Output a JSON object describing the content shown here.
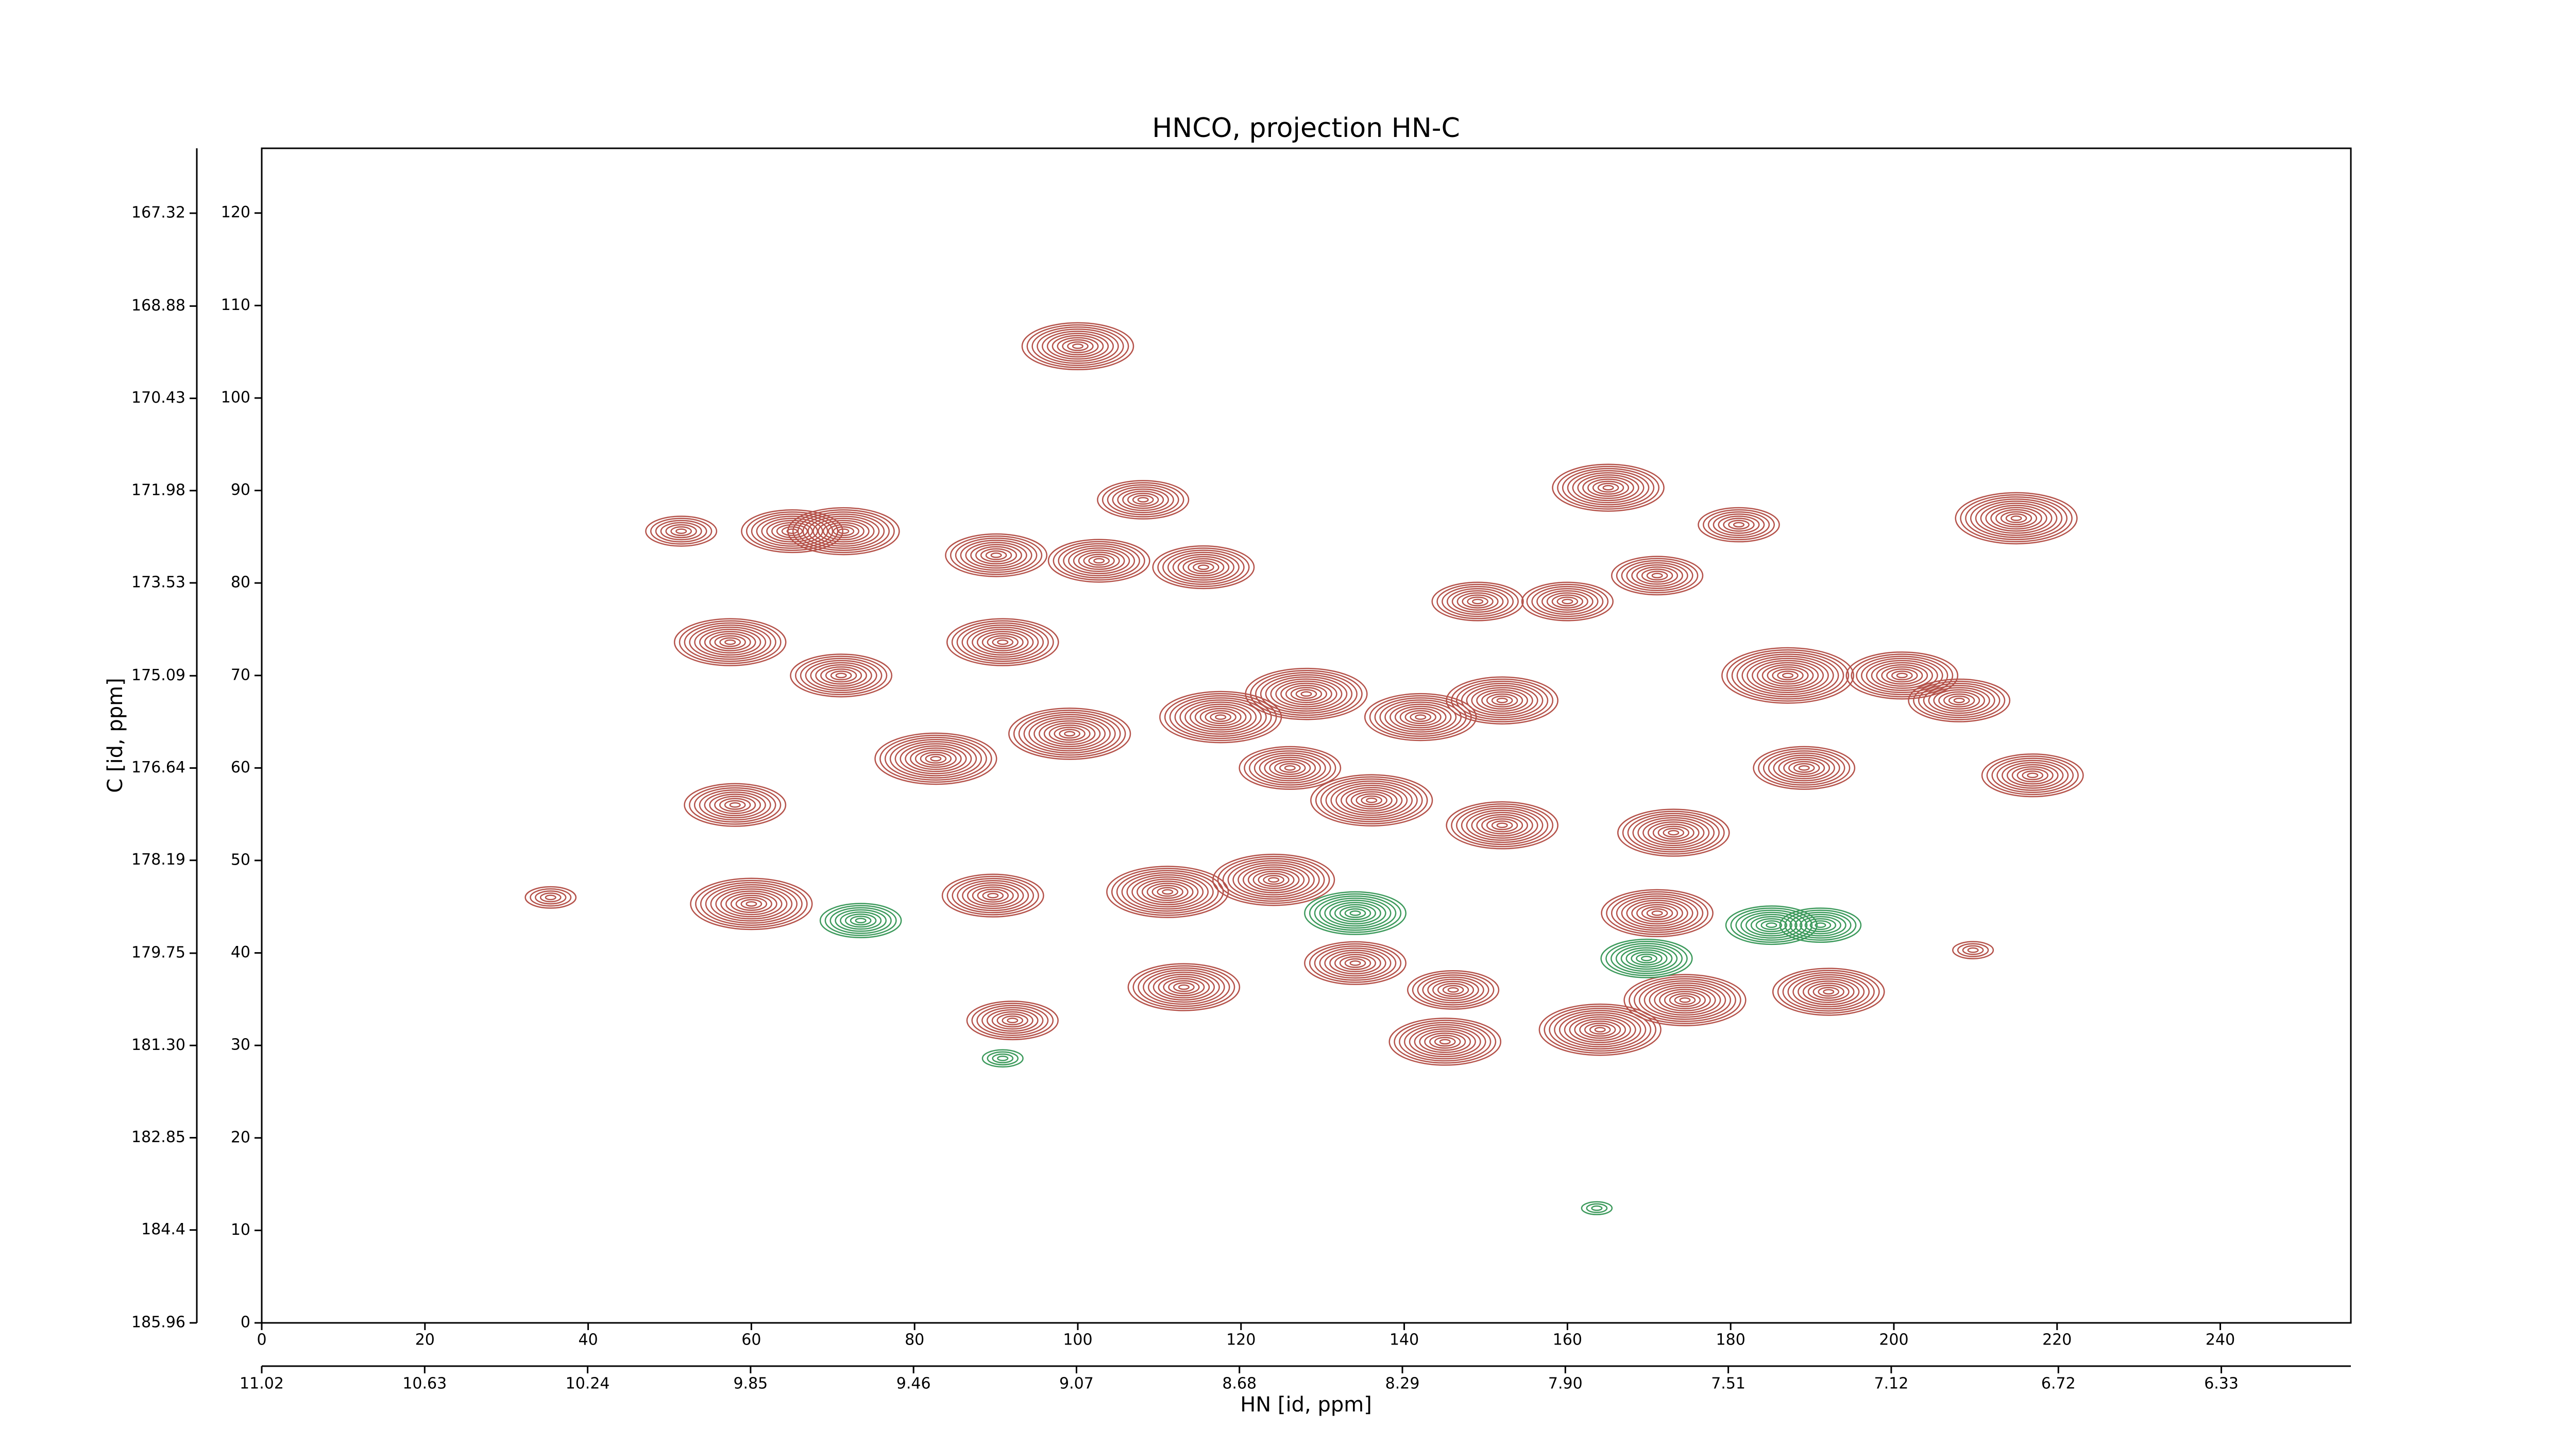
{
  "chart_data": {
    "type": "contour",
    "title": "HNCO, projection HN-C",
    "xlabel": "HN [id, ppm]",
    "ylabel": "C [id, ppm]",
    "xlim": [
      0,
      256
    ],
    "xticks": [
      0,
      20,
      40,
      60,
      80,
      100,
      120,
      140,
      160,
      180,
      200,
      220,
      240
    ],
    "ylim": [
      0,
      127
    ],
    "yticks": [
      0,
      10,
      20,
      30,
      40,
      50,
      60,
      70,
      80,
      90,
      100,
      110,
      120
    ],
    "x2lim": [
      11.02,
      6.02
    ],
    "x2ticks": [
      11.02,
      10.63,
      10.24,
      9.85,
      9.46,
      9.07,
      8.68,
      8.29,
      {
        "value": 7.9,
        "label": "7.90"
      },
      7.51,
      7.12,
      6.72,
      6.33
    ],
    "y2lim": [
      185.96,
      166.23
    ],
    "y2ticks": [
      185.96,
      184.4,
      182.85,
      {
        "value": 181.3,
        "label": "181.30"
      },
      179.75,
      178.19,
      176.64,
      175.09,
      173.53,
      171.98,
      170.43,
      168.88,
      167.32
    ],
    "positive": {
      "color": "#b5534b",
      "x": [
        100,
        90,
        102.6,
        65,
        71.3,
        51.4,
        57.4,
        71,
        58,
        60,
        35.4,
        89.6,
        92,
        111,
        124,
        113,
        134,
        146,
        145,
        164,
        171,
        173,
        174.4,
        192,
        187,
        201,
        208,
        217,
        215,
        181,
        165,
        189,
        152,
        149,
        160,
        171,
        128,
        117.5,
        136,
        99,
        82.6,
        126,
        142,
        152,
        108,
        115.4,
        90.8,
        209.7
      ],
      "y": [
        105.6,
        83,
        82.4,
        85.6,
        85.6,
        85.6,
        73.6,
        70,
        56,
        45.3,
        46,
        46.2,
        32.7,
        46.6,
        47.9,
        36.3,
        38.9,
        36,
        30.4,
        31.7,
        44.3,
        53,
        34.9,
        35.8,
        70,
        70,
        67.3,
        59.2,
        87,
        86.3,
        90.3,
        60,
        53.8,
        78,
        78,
        80.8,
        68,
        65.5,
        56.5,
        63.7,
        61,
        60,
        65.5,
        67.3,
        89,
        81.7,
        73.6,
        40.3
      ],
      "levels": [
        11,
        10,
        10,
        10,
        11,
        7,
        11,
        10,
        10,
        12,
        5,
        10,
        9,
        12,
        12,
        11,
        10,
        9,
        11,
        12,
        11,
        11,
        12,
        11,
        13,
        11,
        10,
        10,
        12,
        8,
        11,
        10,
        11,
        9,
        9,
        9,
        12,
        12,
        12,
        12,
        12,
        10,
        11,
        11,
        9,
        10,
        11,
        4
      ]
    },
    "negative": {
      "color": "#3d9a5c",
      "x": [
        73.4,
        134,
        169.7,
        185,
        191,
        90.8,
        163.6
      ],
      "y": [
        43.5,
        44.3,
        39.4,
        43,
        43,
        28.6,
        12.4
      ],
      "levels": [
        8,
        10,
        9,
        9,
        8,
        4,
        3
      ]
    }
  }
}
